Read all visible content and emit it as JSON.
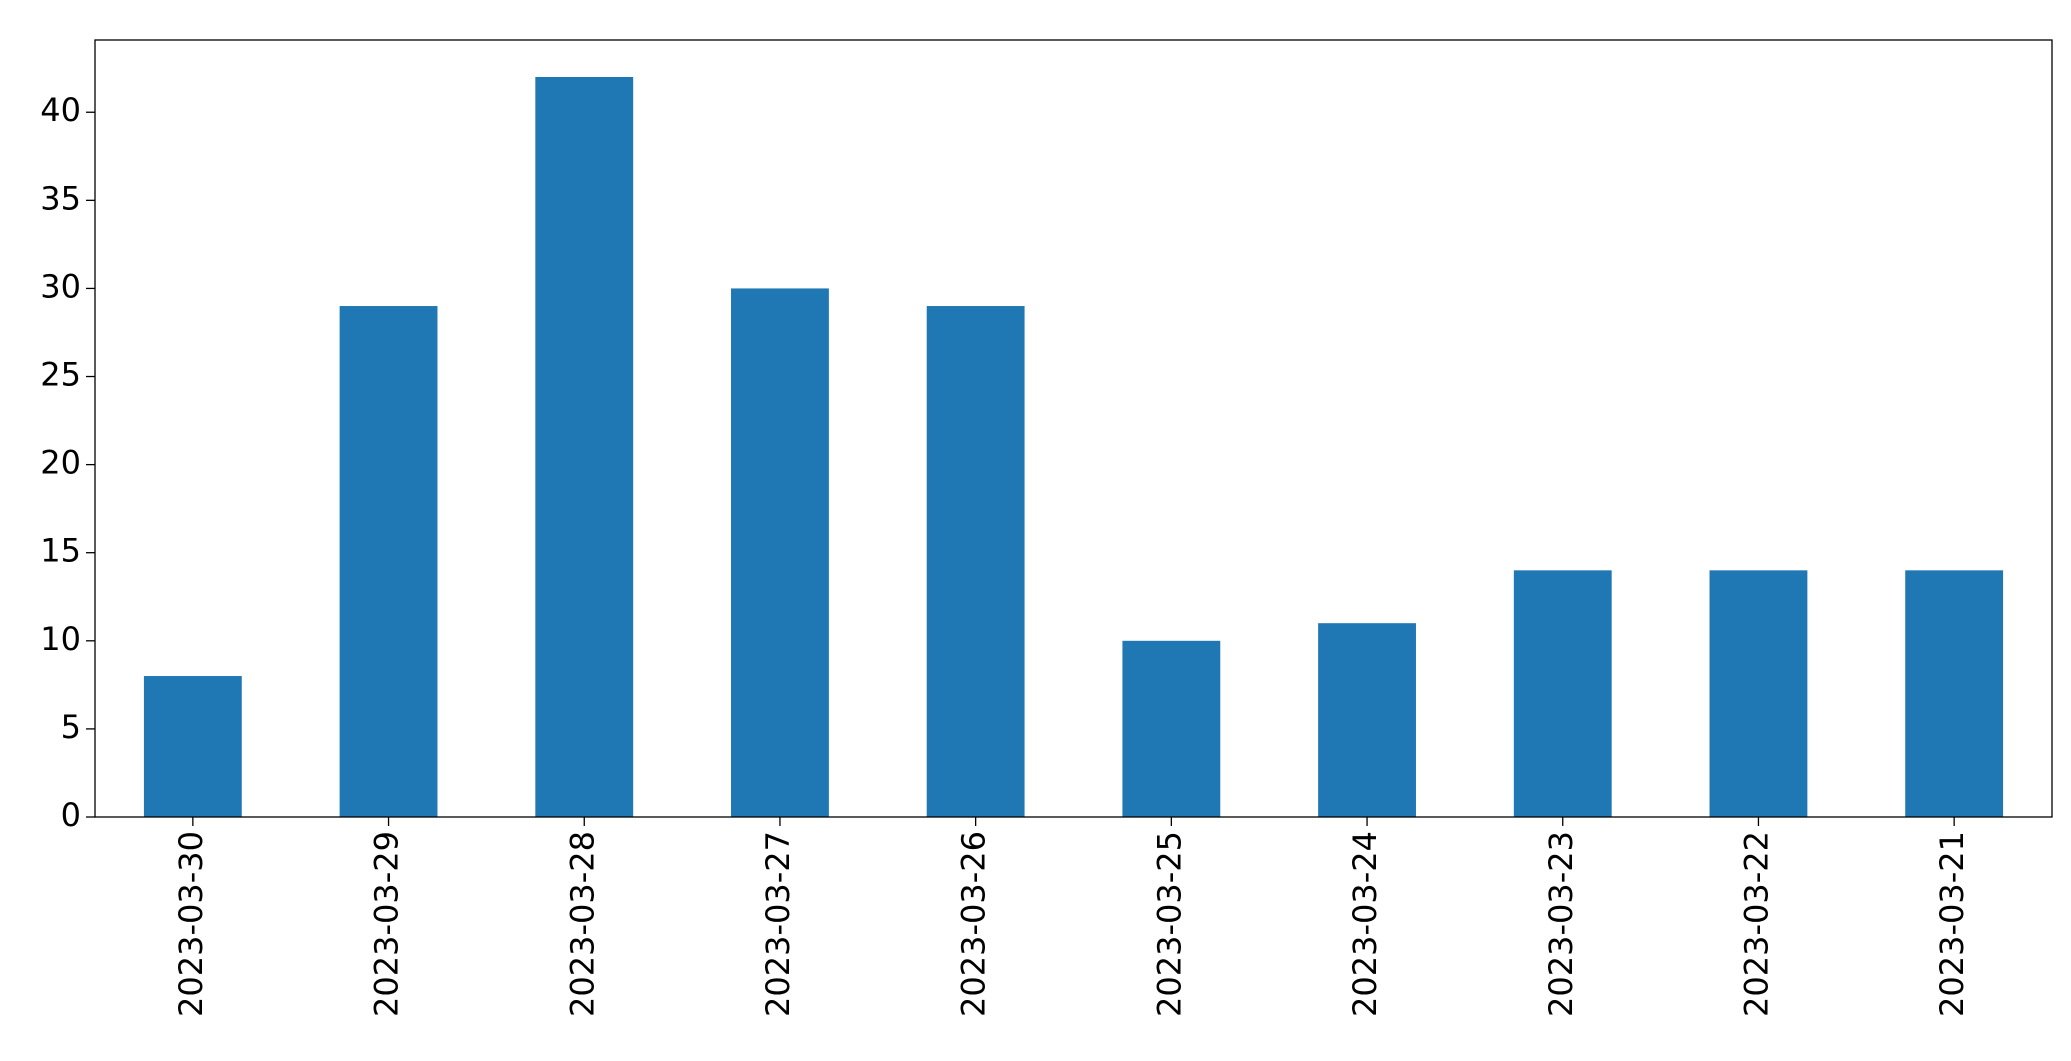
{
  "chart_data": {
    "type": "bar",
    "categories": [
      "2023-03-30",
      "2023-03-29",
      "2023-03-28",
      "2023-03-27",
      "2023-03-26",
      "2023-03-25",
      "2023-03-24",
      "2023-03-23",
      "2023-03-22",
      "2023-03-21"
    ],
    "values": [
      8,
      29,
      42,
      30,
      29,
      10,
      11,
      14,
      14,
      14
    ],
    "color": "#1f77b4",
    "ylim": [
      0,
      44.1
    ],
    "yticks": [
      0,
      5,
      10,
      15,
      20,
      25,
      30,
      35,
      40
    ],
    "grid": false
  }
}
